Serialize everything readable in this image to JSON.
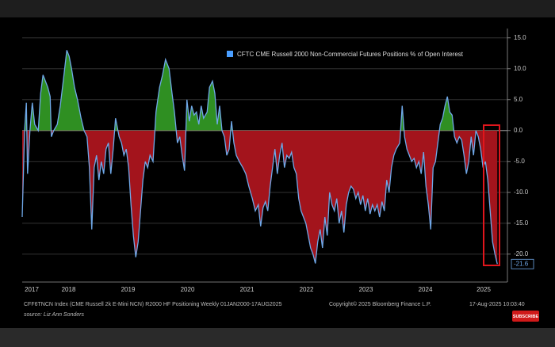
{
  "chart_data": {
    "type": "line",
    "legend": "CFTC CME Russell 2000 Non-Commercial Futures Positions % of Open Interest",
    "x": [
      2017.72,
      2017.76,
      2017.79,
      2017.81,
      2017.85,
      2017.89,
      2017.93,
      2017.99,
      2018.03,
      2018.07,
      2018.11,
      2018.15,
      2018.19,
      2018.21,
      2018.25,
      2018.31,
      2018.36,
      2018.41,
      2018.47,
      2018.51,
      2018.55,
      2018.6,
      2018.65,
      2018.71,
      2018.76,
      2018.81,
      2018.85,
      2018.89,
      2018.93,
      2018.97,
      2019.01,
      2019.05,
      2019.09,
      2019.13,
      2019.17,
      2019.21,
      2019.25,
      2019.29,
      2019.35,
      2019.39,
      2019.43,
      2019.47,
      2019.51,
      2019.55,
      2019.59,
      2019.63,
      2019.67,
      2019.71,
      2019.75,
      2019.79,
      2019.83,
      2019.87,
      2019.92,
      2019.97,
      2020.03,
      2020.08,
      2020.13,
      2020.19,
      2020.24,
      2020.28,
      2020.31,
      2020.33,
      2020.37,
      2020.41,
      2020.45,
      2020.49,
      2020.53,
      2020.57,
      2020.61,
      2020.65,
      2020.69,
      2020.73,
      2020.77,
      2020.83,
      2020.87,
      2020.92,
      2020.96,
      2021.0,
      2021.04,
      2021.08,
      2021.12,
      2021.16,
      2021.2,
      2021.24,
      2021.28,
      2021.32,
      2021.37,
      2021.43,
      2021.48,
      2021.53,
      2021.59,
      2021.64,
      2021.69,
      2021.73,
      2021.77,
      2021.81,
      2021.85,
      2021.89,
      2021.93,
      2021.97,
      2022.01,
      2022.05,
      2022.09,
      2022.13,
      2022.17,
      2022.21,
      2022.25,
      2022.29,
      2022.33,
      2022.37,
      2022.41,
      2022.45,
      2022.49,
      2022.53,
      2022.57,
      2022.61,
      2022.65,
      2022.69,
      2022.73,
      2022.77,
      2022.81,
      2022.85,
      2022.89,
      2022.93,
      2022.97,
      2023.01,
      2023.05,
      2023.09,
      2023.13,
      2023.17,
      2023.21,
      2023.25,
      2023.29,
      2023.33,
      2023.37,
      2023.41,
      2023.45,
      2023.49,
      2023.53,
      2023.57,
      2023.61,
      2023.65,
      2023.69,
      2023.73,
      2023.77,
      2023.81,
      2023.85,
      2023.89,
      2023.93,
      2023.97,
      2024.01,
      2024.07,
      2024.11,
      2024.15,
      2024.19,
      2024.23,
      2024.27,
      2024.31,
      2024.35,
      2024.39,
      2024.43,
      2024.47,
      2024.51,
      2024.55,
      2024.59,
      2024.63,
      2024.67,
      2024.71,
      2024.75,
      2024.79,
      2024.83,
      2024.87,
      2024.91,
      2024.95,
      2024.99,
      2025.03,
      2025.07,
      2025.11,
      2025.15,
      2025.19,
      2025.23,
      2025.27,
      2025.31,
      2025.35,
      2025.39,
      2025.43,
      2025.47,
      2025.51,
      2025.55,
      2025.59,
      2025.63,
      2025.67,
      2025.71
    ],
    "series": [
      {
        "name": "CFTC CME Russell 2000 Non-Commercial Futures Positions % of Open Interest",
        "color": "#6fa8e8",
        "values": [
          -14,
          0,
          4.5,
          -7,
          0,
          4.5,
          1,
          0,
          6,
          9,
          8,
          7,
          5.5,
          -1,
          0,
          1,
          4,
          8,
          13,
          12,
          10,
          7,
          5,
          2,
          0,
          -1,
          -6,
          -16,
          -6,
          -4,
          -8,
          -5,
          -7,
          -3,
          -2,
          -7,
          -3,
          2,
          -1,
          -2,
          -4,
          -3,
          -6,
          -12,
          -17,
          -20.5,
          -18,
          -13,
          -8,
          -5,
          -6,
          -4,
          -5,
          3,
          7,
          9,
          11.5,
          10,
          6,
          3,
          0,
          -2,
          -1,
          -4,
          -6.5,
          5,
          1.5,
          4,
          2.5,
          3,
          1,
          4,
          2,
          3,
          7,
          8,
          6,
          1,
          4,
          0,
          -1,
          -4,
          -3,
          1.5,
          -2,
          -4,
          -5,
          -6,
          -7,
          -9,
          -11,
          -13,
          -12,
          -15.5,
          -12.5,
          -11.5,
          -13,
          -9,
          -6,
          -3,
          -7,
          -4,
          -2,
          -6,
          -4,
          -4.5,
          -3.5,
          -6,
          -7,
          -11,
          -13,
          -14,
          -15,
          -17,
          -19,
          -20,
          -21.5,
          -18,
          -16,
          -19,
          -14,
          -17,
          -10,
          -12,
          -13,
          -11,
          -15,
          -13,
          -16.5,
          -12,
          -10,
          -9,
          -9.5,
          -11,
          -10,
          -12,
          -10.5,
          -13,
          -11,
          -13.5,
          -12,
          -13,
          -12,
          -14,
          -11.5,
          -13,
          -8,
          -10,
          -6,
          -4,
          -3,
          -2,
          4,
          -1,
          -3,
          -4,
          -5,
          -4.5,
          -6,
          -5,
          -7,
          -3.5,
          -9,
          -12,
          -16,
          -6,
          -5,
          -2,
          1,
          2,
          4,
          5.5,
          3,
          2.5,
          -1,
          -2,
          -1,
          -1.5,
          -4,
          -7,
          -5,
          -1,
          -4,
          0,
          -1,
          -3,
          -6,
          -5,
          -8,
          -13,
          -18,
          -20,
          -21.6
        ]
      }
    ],
    "fill_colors": {
      "above": "#2f8f22",
      "below": "#a3141c"
    },
    "xlim": [
      2017.72,
      2025.88
    ],
    "xticks": [
      {
        "value": 2017.88,
        "label": "2017"
      },
      {
        "value": 2018.5,
        "label": "2018"
      },
      {
        "value": 2019.5,
        "label": "2019"
      },
      {
        "value": 2020.5,
        "label": "2020"
      },
      {
        "value": 2021.5,
        "label": "2021"
      },
      {
        "value": 2022.5,
        "label": "2022"
      },
      {
        "value": 2023.5,
        "label": "2023"
      },
      {
        "value": 2024.5,
        "label": "2024"
      },
      {
        "value": 2025.48,
        "label": "2025"
      }
    ],
    "ylim": [
      -24,
      16
    ],
    "yticks": [
      {
        "value": 15,
        "label": "15.0"
      },
      {
        "value": 10,
        "label": "10.0"
      },
      {
        "value": 5,
        "label": "5.0"
      },
      {
        "value": 0,
        "label": "0.0"
      },
      {
        "value": -5,
        "label": "-5.0"
      },
      {
        "value": -10,
        "label": "-10.0"
      },
      {
        "value": -15,
        "label": "-15.0"
      },
      {
        "value": -20,
        "label": "-20.0"
      }
    ],
    "grid": true,
    "footer": {
      "index": "CFF6TNCN Index (CME Russell 2k E-Mini NCN) R2000 HF Positioning  Weekly 01JAN2000-17AUG2025",
      "copyright": "Copyright© 2025 Bloomberg Finance L.P.",
      "timestamp": "17-Aug-2025 10:03:40",
      "source": "source: Liz Ann Sonders"
    }
  },
  "overlay": {
    "badge": "SUBSCRIBE"
  }
}
